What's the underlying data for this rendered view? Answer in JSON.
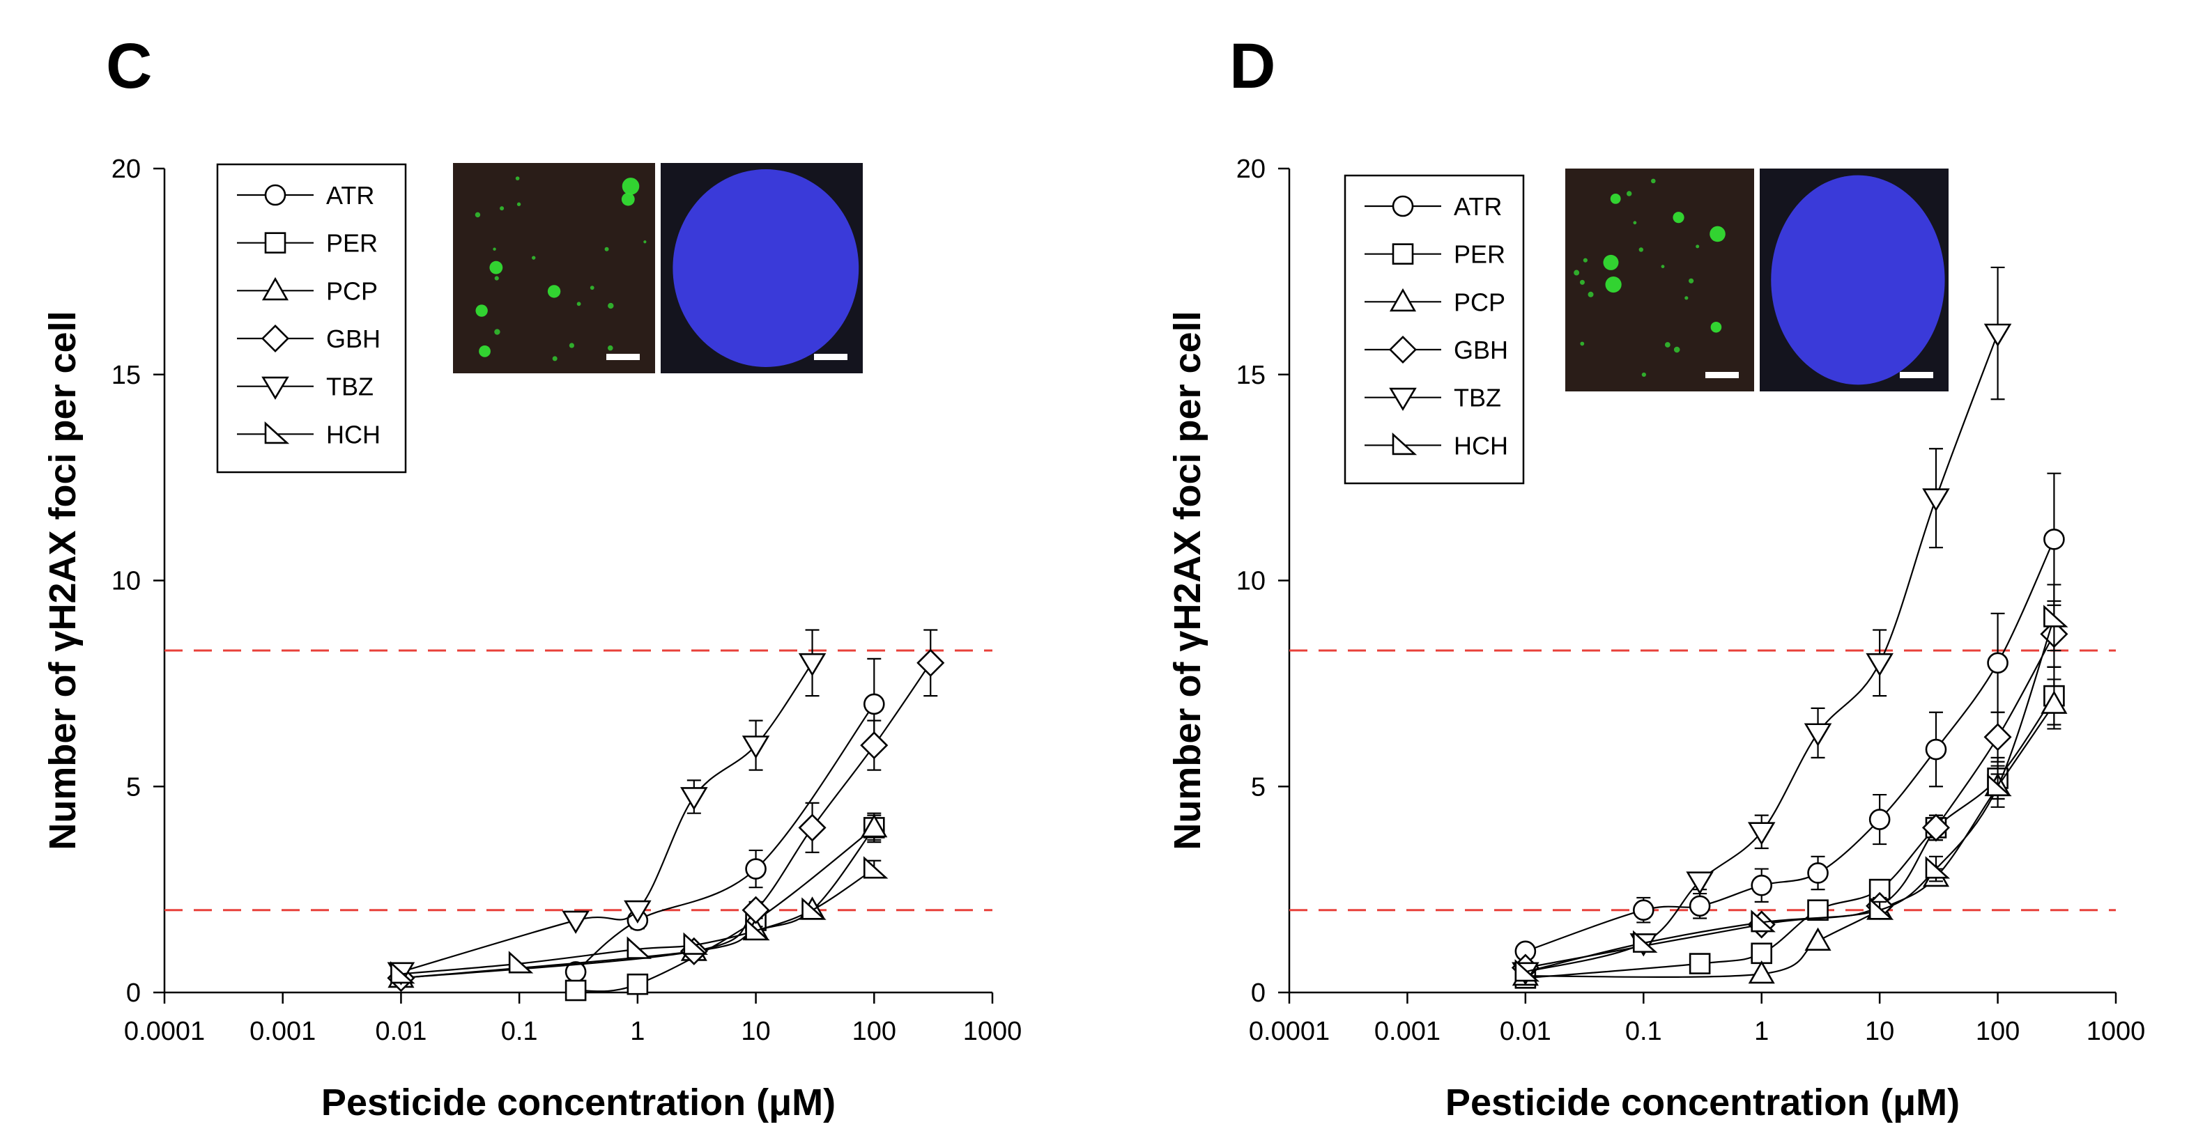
{
  "panels": [
    {
      "letter": "C",
      "threshold_color": "#e8403a",
      "inset_colors": {
        "foci": "#2a1d18",
        "spot": "#33dd33",
        "nucleus_bg": "#14141e",
        "nucleus": "#3a3ad9",
        "scale_bar": "#ffffff"
      }
    },
    {
      "letter": "D",
      "threshold_color": "#e8403a",
      "inset_colors": {
        "foci": "#2a1d18",
        "spot": "#33dd33",
        "nucleus_bg": "#14141e",
        "nucleus": "#3a3ad9",
        "scale_bar": "#ffffff"
      }
    }
  ],
  "chart_data": [
    {
      "type": "scatter",
      "panel": "C",
      "xlabel": "Pesticide concentration (μM)",
      "ylabel": "Number of γH2AX foci per cell",
      "x_scale": "log",
      "xlim": [
        0.0001,
        1000
      ],
      "ylim": [
        0,
        20
      ],
      "xticks": [
        "0.0001",
        "0.001",
        "0.01",
        "0.1",
        "1",
        "10",
        "100",
        "1000"
      ],
      "yticks": [
        "0",
        "5",
        "10",
        "15",
        "20"
      ],
      "thresholds": [
        8.3,
        2.0
      ],
      "legend_position": "top-left",
      "series": [
        {
          "name": "ATR",
          "marker": "circle",
          "x": [
            0.3,
            1,
            10,
            100
          ],
          "y": [
            0.5,
            1.75,
            3.0,
            7.0
          ],
          "err": [
            0,
            0.2,
            0.45,
            1.1
          ]
        },
        {
          "name": "PER",
          "marker": "square",
          "x": [
            0.3,
            1,
            10,
            100
          ],
          "y": [
            0.05,
            0.2,
            1.75,
            4.0
          ],
          "err": [
            0,
            0,
            0.2,
            0.35
          ]
        },
        {
          "name": "PCP",
          "marker": "triangle-up",
          "x": [
            0.01,
            3,
            10,
            30,
            100
          ],
          "y": [
            0.35,
            1.0,
            1.5,
            2.0,
            4.0
          ],
          "err": [
            0,
            0,
            0.1,
            0.1,
            0.3
          ]
        },
        {
          "name": "GBH",
          "marker": "diamond",
          "x": [
            0.01,
            3,
            10,
            30,
            100,
            300
          ],
          "y": [
            0.35,
            1.0,
            2.0,
            4.0,
            6.0,
            8.0
          ],
          "err": [
            0,
            0,
            0.2,
            0.6,
            0.6,
            0.8
          ]
        },
        {
          "name": "TBZ",
          "marker": "triangle-down",
          "x": [
            0.01,
            0.3,
            1,
            3,
            10,
            30
          ],
          "y": [
            0.5,
            1.75,
            2.0,
            4.75,
            6.0,
            8.0
          ],
          "err": [
            0,
            0,
            0,
            0.4,
            0.6,
            0.8
          ]
        },
        {
          "name": "HCH",
          "marker": "right-triangle",
          "x": [
            0.01,
            0.1,
            1,
            3,
            10,
            30,
            100
          ],
          "y": [
            0.45,
            0.7,
            1.05,
            1.15,
            1.5,
            2.0,
            3.0
          ],
          "err": [
            0,
            0,
            0,
            0,
            0,
            0,
            0.2
          ]
        }
      ]
    },
    {
      "type": "scatter",
      "panel": "D",
      "xlabel": "Pesticide concentration (μM)",
      "ylabel": "Number of γH2AX foci per cell",
      "x_scale": "log",
      "xlim": [
        0.0001,
        1000
      ],
      "ylim": [
        0,
        20
      ],
      "xticks": [
        "0.0001",
        "0.001",
        "0.01",
        "0.1",
        "1",
        "10",
        "100",
        "1000"
      ],
      "yticks": [
        "0",
        "5",
        "10",
        "15",
        "20"
      ],
      "thresholds": [
        8.3,
        2.0
      ],
      "legend_position": "top-left",
      "series": [
        {
          "name": "ATR",
          "marker": "circle",
          "x": [
            0.01,
            0.1,
            0.3,
            1,
            3,
            10,
            30,
            100,
            300
          ],
          "y": [
            1.0,
            2.0,
            2.1,
            2.6,
            2.9,
            4.2,
            5.9,
            8.0,
            11.0
          ],
          "err": [
            0,
            0.3,
            0.3,
            0.4,
            0.4,
            0.6,
            0.9,
            1.2,
            1.6
          ]
        },
        {
          "name": "PER",
          "marker": "square",
          "x": [
            0.01,
            0.3,
            1,
            3,
            10,
            30,
            100,
            300
          ],
          "y": [
            0.35,
            0.7,
            0.95,
            2.0,
            2.5,
            4.0,
            5.2,
            7.2
          ],
          "err": [
            0,
            0.15,
            0.15,
            0.2,
            0.2,
            0.3,
            0.5,
            0.7
          ]
        },
        {
          "name": "PCP",
          "marker": "triangle-up",
          "x": [
            0.01,
            1,
            3,
            10,
            30,
            100,
            300
          ],
          "y": [
            0.4,
            0.45,
            1.25,
            2.0,
            2.8,
            5.0,
            7.0
          ],
          "err": [
            0,
            0,
            0,
            0.2,
            0.2,
            0.3,
            0.6
          ]
        },
        {
          "name": "GBH",
          "marker": "diamond",
          "x": [
            0.01,
            1,
            10,
            30,
            100,
            300
          ],
          "y": [
            0.6,
            1.65,
            2.1,
            4.0,
            6.2,
            8.7
          ],
          "err": [
            0,
            0,
            0.2,
            0.3,
            0.6,
            0.8
          ]
        },
        {
          "name": "TBZ",
          "marker": "triangle-down",
          "x": [
            0.01,
            0.1,
            0.3,
            1,
            3,
            10,
            30,
            100
          ],
          "y": [
            0.5,
            1.2,
            2.7,
            3.9,
            6.3,
            8.0,
            12.0,
            16.0
          ],
          "err": [
            0,
            0,
            0.2,
            0.4,
            0.6,
            0.8,
            1.2,
            1.6
          ]
        },
        {
          "name": "HCH",
          "marker": "right-triangle",
          "x": [
            0.01,
            0.1,
            1,
            10,
            30,
            100,
            300
          ],
          "y": [
            0.5,
            1.2,
            1.7,
            2.0,
            3.0,
            5.0,
            9.1
          ],
          "err": [
            0,
            0,
            0,
            0.2,
            0.3,
            0.5,
            0.8
          ]
        }
      ]
    }
  ]
}
